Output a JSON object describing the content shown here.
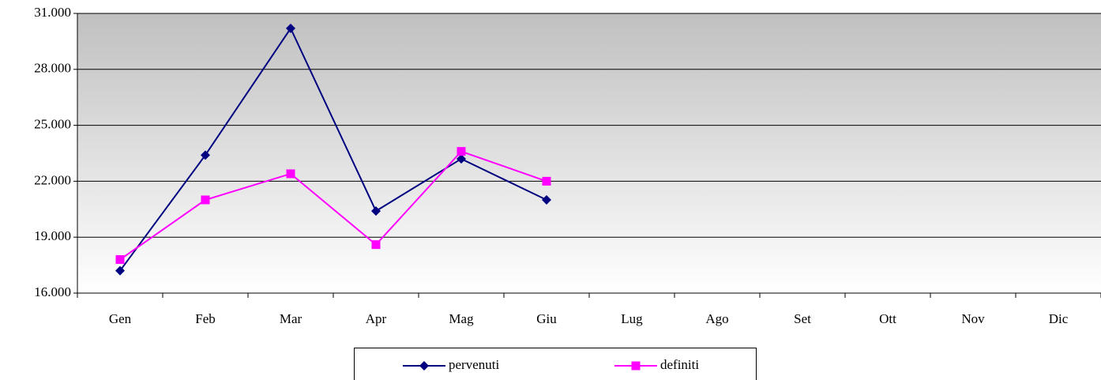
{
  "chart_data": {
    "type": "line",
    "categories": [
      "Gen",
      "Feb",
      "Mar",
      "Apr",
      "Mag",
      "Giu",
      "Lug",
      "Ago",
      "Set",
      "Ott",
      "Nov",
      "Dic"
    ],
    "series": [
      {
        "name": "pervenuti",
        "color": "#000080",
        "marker": "diamond",
        "values": [
          17200,
          23400,
          30200,
          20400,
          23200,
          21000,
          null,
          null,
          null,
          null,
          null,
          null
        ]
      },
      {
        "name": "definiti",
        "color": "#ff00ff",
        "marker": "square",
        "values": [
          17800,
          21000,
          22400,
          18600,
          23600,
          22000,
          null,
          null,
          null,
          null,
          null,
          null
        ]
      }
    ],
    "ylim": [
      16000,
      31000
    ],
    "yticks": [
      {
        "value": 16000,
        "label": "16.000"
      },
      {
        "value": 19000,
        "label": "19.000"
      },
      {
        "value": 22000,
        "label": "22.000"
      },
      {
        "value": 25000,
        "label": "25.000"
      },
      {
        "value": 28000,
        "label": "28.000"
      },
      {
        "value": 31000,
        "label": "31.000"
      }
    ],
    "grid": true,
    "legend": "bottom"
  }
}
